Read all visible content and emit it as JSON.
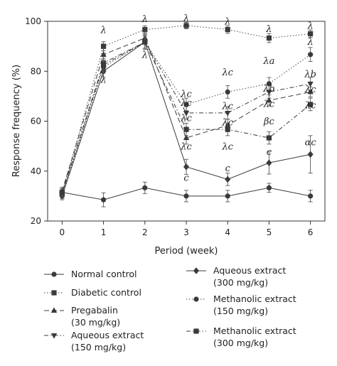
{
  "chart_data": {
    "type": "line",
    "title": "",
    "xlabel": "Period (week)",
    "ylabel": "Response frequency (%)",
    "x": [
      0,
      1,
      2,
      3,
      4,
      5,
      6
    ],
    "xlim": [
      -0.35,
      6.35
    ],
    "ylim": [
      20,
      100
    ],
    "xticks": [
      "0",
      "1",
      "2",
      "3",
      "4",
      "5",
      "6"
    ],
    "yticks": [
      20,
      40,
      60,
      80,
      100
    ],
    "grid": false,
    "legend_position": "bottom",
    "series": [
      {
        "name": "Normal control",
        "marker": "circle",
        "dash": "solid",
        "values": [
          31.5,
          28.5,
          33.3,
          30,
          30,
          33.3,
          30
        ],
        "errors": [
          1.5,
          2.8,
          2.3,
          2.3,
          2.3,
          1.8,
          2.3
        ]
      },
      {
        "name": "Diabetic control",
        "marker": "square",
        "dash": "dotted",
        "values": [
          31,
          90,
          96.7,
          98.3,
          96.7,
          93.3,
          95
        ],
        "errors": [
          1.5,
          1.8,
          1.5,
          1.3,
          1.5,
          1.8,
          1.5
        ]
      },
      {
        "name": "Pregabalin\n(30 mg/kg)",
        "marker": "triangle-up",
        "dash": "longdash",
        "values": [
          32,
          86.7,
          93.3,
          53.3,
          58.3,
          68.3,
          71.7
        ],
        "errors": [
          1.5,
          2.3,
          2,
          2.5,
          2.5,
          2.2,
          2
        ]
      },
      {
        "name": "Aqueous extract\n(150 mg/kg)",
        "marker": "triangle-down",
        "dash": "dashdot",
        "values": [
          31,
          83.3,
          91.7,
          63.3,
          63.3,
          71.7,
          75
        ],
        "errors": [
          1.5,
          2.5,
          2.5,
          2.5,
          2.5,
          2.5,
          2.5
        ]
      },
      {
        "name": "Aqueous extract\n(300 mg/kg)",
        "marker": "diamond",
        "dash": "solid",
        "values": [
          30,
          80,
          91.7,
          41.7,
          36.7,
          43.3,
          46.7
        ],
        "errors": [
          1.5,
          2.5,
          3,
          3,
          2.5,
          4.5,
          7.5
        ]
      },
      {
        "name": "Methanolic extract\n(150 mg/kg)",
        "marker": "circle",
        "dash": "dotted",
        "values": [
          30.5,
          81.7,
          91.7,
          66.7,
          71.7,
          75,
          86.7
        ],
        "errors": [
          1.5,
          2.5,
          2.5,
          2.5,
          2.5,
          2.5,
          2.8
        ]
      },
      {
        "name": "Methanolic extract\n(300 mg/kg)",
        "marker": "square",
        "dash": "dashdot",
        "values": [
          31.5,
          82.5,
          91.7,
          56.7,
          56.7,
          53.3,
          66.7
        ],
        "errors": [
          1.5,
          2.5,
          2.5,
          2.5,
          2.5,
          2.5,
          2.5
        ]
      }
    ],
    "annotations": [
      {
        "x": 1,
        "y": 96.5,
        "text": "λ"
      },
      {
        "x": 1,
        "y": 76.5,
        "text": "λ"
      },
      {
        "x": 2,
        "y": 100.8,
        "text": "λ"
      },
      {
        "x": 2,
        "y": 86.5,
        "text": "λ"
      },
      {
        "x": 3,
        "y": 101.2,
        "text": "λ"
      },
      {
        "x": 4,
        "y": 99.8,
        "text": "λ"
      },
      {
        "x": 5,
        "y": 96.8,
        "text": "λ"
      },
      {
        "x": 6,
        "y": 98.2,
        "text": "λ"
      },
      {
        "x": 3,
        "y": 70.8,
        "text": "λc"
      },
      {
        "x": 3,
        "y": 67.2,
        "text": "λc"
      },
      {
        "x": 3,
        "y": 61.2,
        "text": "λc"
      },
      {
        "x": 3,
        "y": 49.8,
        "text": "λc"
      },
      {
        "x": 3,
        "y": 37.2,
        "text": "c"
      },
      {
        "x": 4,
        "y": 79.5,
        "text": "λc"
      },
      {
        "x": 4,
        "y": 66.0,
        "text": "λc"
      },
      {
        "x": 4,
        "y": 59.5,
        "text": "λc"
      },
      {
        "x": 4,
        "y": 49.8,
        "text": "λc"
      },
      {
        "x": 4,
        "y": 41.0,
        "text": "c"
      },
      {
        "x": 5,
        "y": 84.0,
        "text": "λa"
      },
      {
        "x": 5,
        "y": 73.0,
        "text": "λb"
      },
      {
        "x": 5,
        "y": 66.8,
        "text": "λc"
      },
      {
        "x": 5,
        "y": 59.8,
        "text": "βc"
      },
      {
        "x": 5,
        "y": 47.6,
        "text": "c"
      },
      {
        "x": 6,
        "y": 91.8,
        "text": "λ"
      },
      {
        "x": 6,
        "y": 78.8,
        "text": "λb"
      },
      {
        "x": 6,
        "y": 72.7,
        "text": "λc"
      },
      {
        "x": 6,
        "y": 66.3,
        "text": "λc"
      },
      {
        "x": 6,
        "y": 51.5,
        "text": "αc"
      }
    ]
  }
}
